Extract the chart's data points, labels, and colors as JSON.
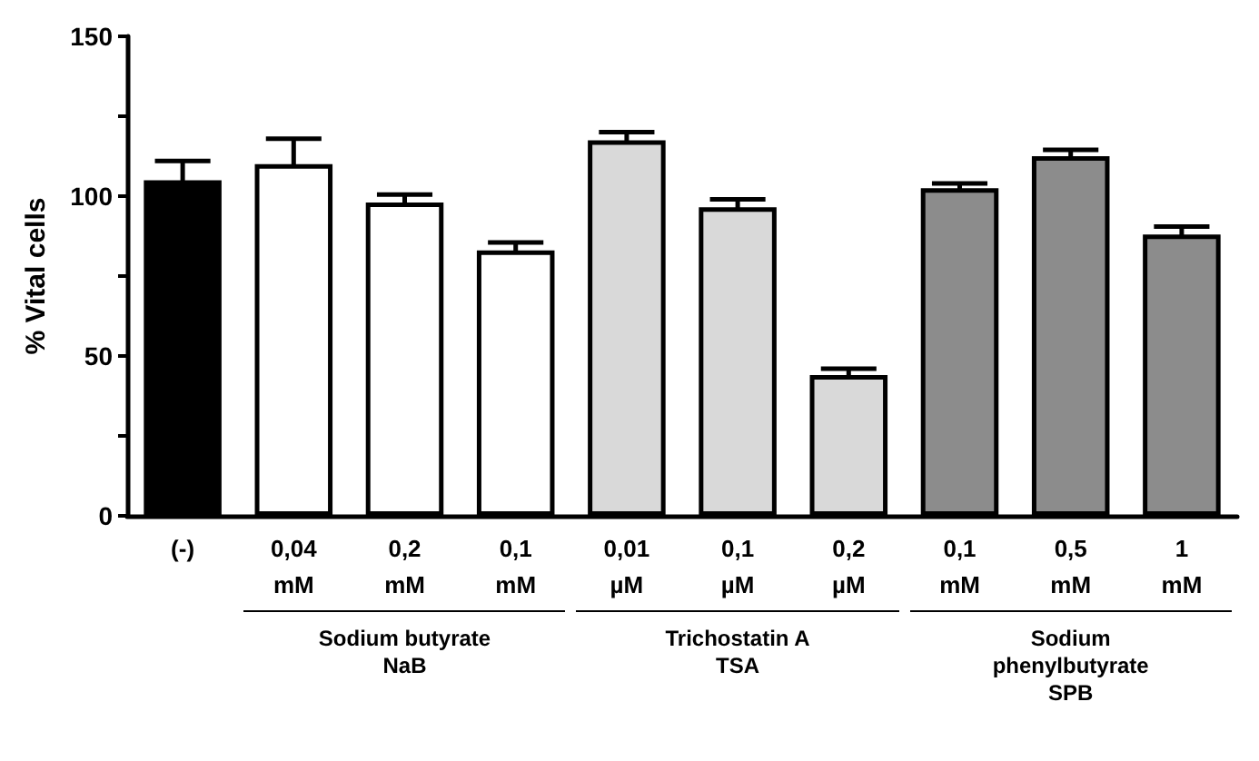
{
  "chart_data": {
    "type": "bar",
    "ylabel": "% Vital cells",
    "categories": [
      "(-)",
      "0,04\nmM",
      "0,2\nmM",
      "0,1\nmM",
      "0,01\nµM",
      "0,1\nµM",
      "0,2\nµM",
      "0,1\nmM",
      "0,5\nmM",
      "1\nmM"
    ],
    "values": [
      105,
      110,
      98,
      83,
      117.5,
      96.5,
      44,
      102.5,
      112.5,
      88
    ],
    "errors": [
      6,
      8,
      2.5,
      2.5,
      2.5,
      2.5,
      2,
      1.5,
      2,
      2.5
    ],
    "colors": [
      "#000000",
      "#ffffff",
      "#ffffff",
      "#ffffff",
      "#d9d9d9",
      "#d9d9d9",
      "#d9d9d9",
      "#8c8c8c",
      "#8c8c8c",
      "#8c8c8c"
    ],
    "ylim": [
      0,
      150
    ],
    "yticks": [
      0,
      {
        "value": 25,
        "label": null
      },
      50,
      {
        "value": 75,
        "label": null
      },
      100,
      {
        "value": 125,
        "label": null
      },
      150
    ],
    "annotations": [
      "Sodium butyrate\nNaB",
      "Trichostatin A\nTSA",
      "Sodium\nphenylbutyrate\nSPB"
    ],
    "grid": false
  }
}
